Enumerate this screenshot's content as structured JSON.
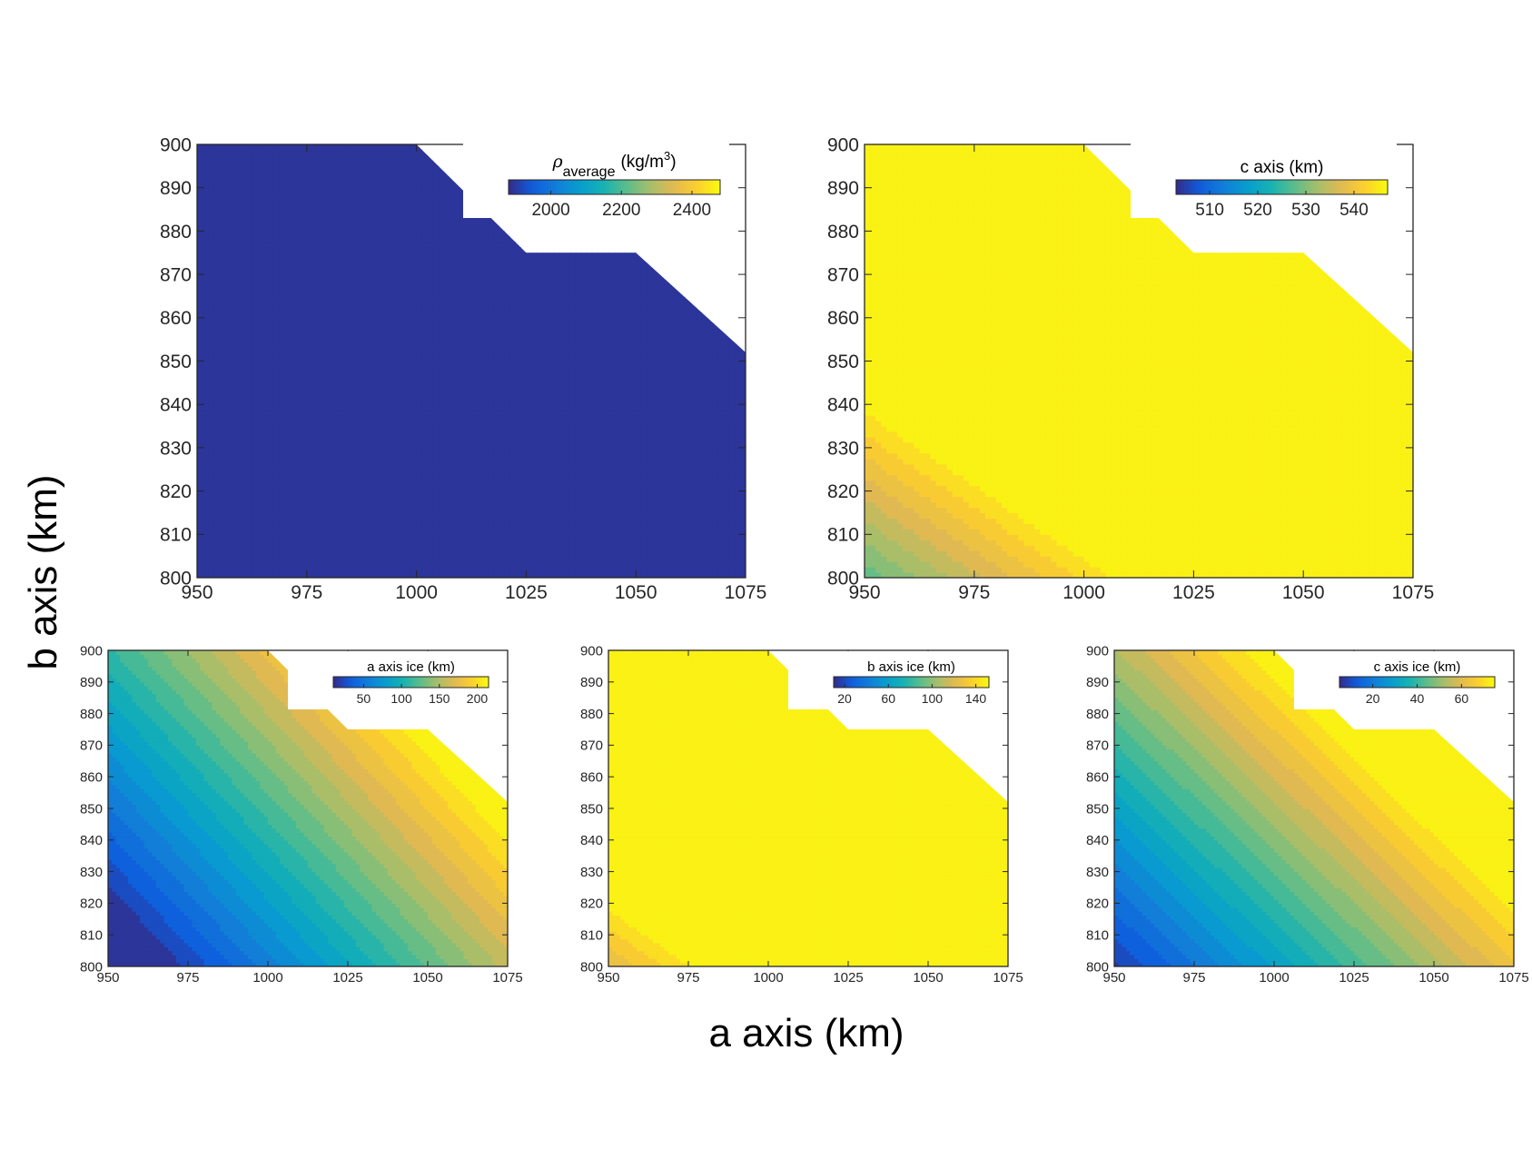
{
  "figure": {
    "xlabel": "a axis (km)",
    "ylabel": "b axis (km)"
  },
  "chart_data": [
    {
      "type": "heatmap",
      "name": "rho-average",
      "colorbar": {
        "title_main": "ρ",
        "title_sub": "average",
        "title_units": "(kg/m",
        "title_sup": "3",
        "title_close": ")",
        "ticks": [
          "2000",
          "2200",
          "2400"
        ],
        "tick_values": [
          2000,
          2200,
          2400
        ],
        "range": [
          1880,
          2480
        ]
      },
      "xlim": [
        950,
        1075
      ],
      "ylim": [
        800,
        900
      ],
      "xticks": [
        "950",
        "975",
        "1000",
        "1025",
        "1050",
        "1075"
      ],
      "yticks": [
        "800",
        "810",
        "820",
        "830",
        "840",
        "850",
        "860",
        "870",
        "880",
        "890",
        "900"
      ],
      "domain_boundary": [
        [
          950,
          900
        ],
        [
          1000,
          900
        ],
        [
          1025,
          875
        ],
        [
          1050,
          875
        ],
        [
          1075,
          852
        ]
      ],
      "field": {
        "base": 5480.5,
        "ax": -1.6,
        "by": -2.8
      },
      "levels": 20
    },
    {
      "type": "heatmap",
      "name": "c-axis",
      "colorbar": {
        "title": "c axis (km)",
        "ticks": [
          "510",
          "520",
          "530",
          "540"
        ],
        "tick_values": [
          510,
          520,
          530,
          540
        ],
        "range": [
          503,
          547
        ]
      },
      "xlim": [
        950,
        1075
      ],
      "ylim": [
        800,
        900
      ],
      "xticks": [
        "950",
        "975",
        "1000",
        "1025",
        "1050",
        "1075"
      ],
      "yticks": [
        "800",
        "810",
        "820",
        "830",
        "840",
        "850",
        "860",
        "870",
        "880",
        "890",
        "900"
      ],
      "domain_boundary": [
        [
          950,
          900
        ],
        [
          1000,
          900
        ],
        [
          1025,
          875
        ],
        [
          1050,
          875
        ],
        [
          1075,
          852
        ]
      ],
      "field": {
        "base": -109,
        "ax": 0.3,
        "by": 0.44
      },
      "levels": 20
    },
    {
      "type": "heatmap",
      "name": "a-axis-ice",
      "colorbar": {
        "title": "a axis ice (km)",
        "ticks": [
          "50",
          "100",
          "150",
          "200"
        ],
        "tick_values": [
          50,
          100,
          150,
          200
        ],
        "range": [
          10,
          215
        ]
      },
      "xlim": [
        950,
        1075
      ],
      "ylim": [
        800,
        900
      ],
      "xticks": [
        "950",
        "975",
        "1000",
        "1025",
        "1050",
        "1075"
      ],
      "yticks": [
        "800",
        "810",
        "820",
        "830",
        "840",
        "850",
        "860",
        "870",
        "880",
        "890",
        "900"
      ],
      "domain_boundary": [
        [
          950,
          900
        ],
        [
          1000,
          900
        ],
        [
          1025,
          875
        ],
        [
          1050,
          875
        ],
        [
          1075,
          852
        ]
      ],
      "field": {
        "base": -2270,
        "ax": 1.35,
        "by": 1.22
      },
      "levels": 20
    },
    {
      "type": "heatmap",
      "name": "b-axis-ice",
      "colorbar": {
        "title": "b axis ice (km)",
        "ticks": [
          "20",
          "60",
          "100",
          "140"
        ],
        "tick_values": [
          20,
          60,
          100,
          140
        ],
        "range": [
          10,
          152
        ]
      },
      "xlim": [
        950,
        1075
      ],
      "ylim": [
        800,
        900
      ],
      "xticks": [
        "950",
        "975",
        "1000",
        "1025",
        "1050",
        "1075"
      ],
      "yticks": [
        "800",
        "810",
        "820",
        "830",
        "840",
        "850",
        "860",
        "870",
        "880",
        "890",
        "900"
      ],
      "domain_boundary": [
        [
          950,
          900
        ],
        [
          1000,
          900
        ],
        [
          1025,
          875
        ],
        [
          1050,
          875
        ],
        [
          1075,
          852
        ]
      ],
      "field": {
        "base": -1670,
        "ax": 0.86,
        "by": 1.22
      },
      "levels": 20
    },
    {
      "type": "heatmap",
      "name": "c-axis-ice",
      "colorbar": {
        "title": "c axis ice (km)",
        "ticks": [
          "20",
          "40",
          "60"
        ],
        "tick_values": [
          20,
          40,
          60
        ],
        "range": [
          5,
          75
        ]
      },
      "xlim": [
        950,
        1075
      ],
      "ylim": [
        800,
        900
      ],
      "xticks": [
        "950",
        "975",
        "1000",
        "1025",
        "1050",
        "1075"
      ],
      "yticks": [
        "800",
        "810",
        "820",
        "830",
        "840",
        "850",
        "860",
        "870",
        "880",
        "890",
        "900"
      ],
      "domain_boundary": [
        [
          950,
          900
        ],
        [
          1000,
          900
        ],
        [
          1025,
          875
        ],
        [
          1050,
          875
        ],
        [
          1075,
          852
        ]
      ],
      "field": {
        "base": -788,
        "ax": 0.45,
        "by": 0.46
      },
      "levels": 20
    }
  ]
}
